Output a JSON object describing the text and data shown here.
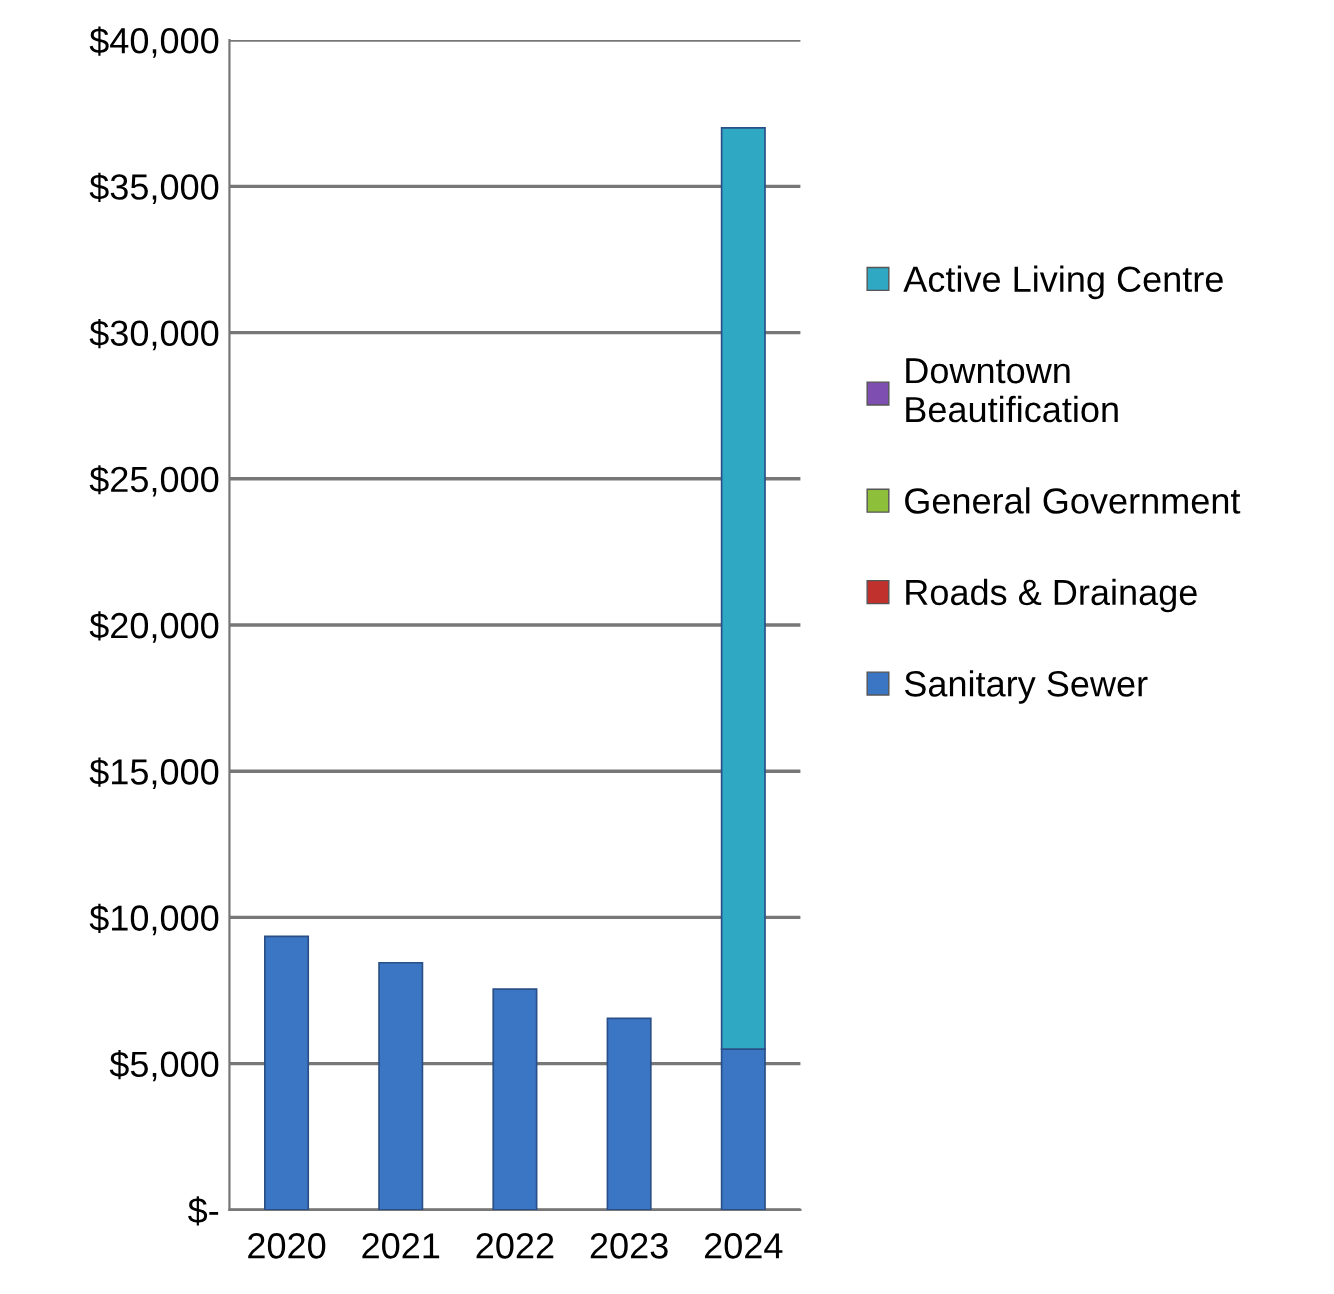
{
  "chart_data": {
    "type": "bar",
    "stacked": true,
    "categories": [
      "2020",
      "2021",
      "2022",
      "2023",
      "2024"
    ],
    "series": [
      {
        "name": "Sanitary Sewer",
        "color": "#3a76c4",
        "values": [
          9350,
          8450,
          7550,
          6550,
          5500
        ]
      },
      {
        "name": "Roads & Drainage",
        "color": "#c0302c",
        "values": [
          null,
          null,
          null,
          null,
          null
        ]
      },
      {
        "name": "General Government",
        "color": "#8ebf3a",
        "values": [
          null,
          null,
          null,
          null,
          null
        ]
      },
      {
        "name": "Downtown Beautification",
        "color": "#7e4fb0",
        "values": [
          null,
          null,
          null,
          null,
          null
        ]
      },
      {
        "name": "Active Living Centre",
        "color": "#2fa8c4",
        "values": [
          null,
          null,
          null,
          null,
          31500
        ]
      }
    ],
    "ylim": [
      0,
      40000
    ],
    "yticks": [
      {
        "value": 0,
        "label": "$-"
      },
      {
        "value": 5000,
        "label": "$5,000"
      },
      {
        "value": 10000,
        "label": "$10,000"
      },
      {
        "value": 15000,
        "label": "$15,000"
      },
      {
        "value": 20000,
        "label": "$20,000"
      },
      {
        "value": 25000,
        "label": "$25,000"
      },
      {
        "value": 30000,
        "label": "$30,000"
      },
      {
        "value": 35000,
        "label": "$35,000"
      },
      {
        "value": 40000,
        "label": "$40,000"
      }
    ],
    "grid": "y",
    "legend": "right"
  }
}
